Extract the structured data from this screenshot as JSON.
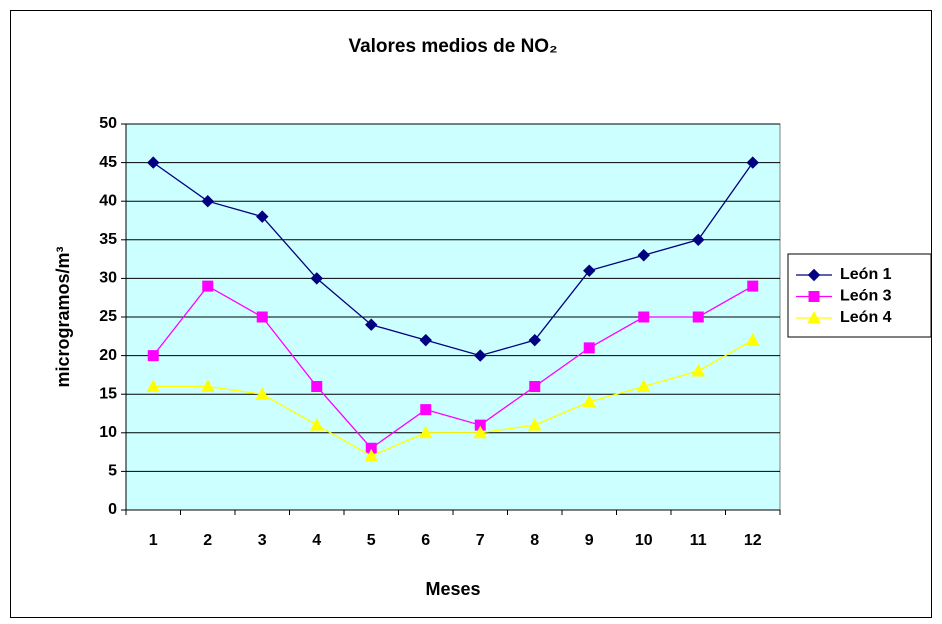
{
  "chart_data": {
    "type": "line",
    "title": "Valores medios de NO₂",
    "x_label": "Meses",
    "y_label": "microgramos/m³",
    "categories": [
      "1",
      "2",
      "3",
      "4",
      "5",
      "6",
      "7",
      "8",
      "9",
      "10",
      "11",
      "12"
    ],
    "series": [
      {
        "name": "León 1",
        "color": "#000080",
        "marker": "diamond",
        "values": [
          45,
          40,
          38,
          30,
          24,
          22,
          20,
          22,
          31,
          33,
          35,
          45
        ]
      },
      {
        "name": "León 3",
        "color": "#ff00ff",
        "marker": "square",
        "values": [
          20,
          29,
          25,
          16,
          8,
          13,
          11,
          16,
          21,
          25,
          25,
          29
        ]
      },
      {
        "name": "León 4",
        "color": "#ffff00",
        "marker": "triangle",
        "values": [
          16,
          16,
          15,
          11,
          7,
          10,
          10,
          11,
          14,
          16,
          18,
          22
        ]
      }
    ],
    "ylim": [
      0,
      50
    ],
    "yticks": [
      0,
      5,
      10,
      15,
      20,
      25,
      30,
      35,
      40,
      45,
      50
    ],
    "grid": true,
    "legend": "right",
    "plot_background": "#ccffff"
  }
}
